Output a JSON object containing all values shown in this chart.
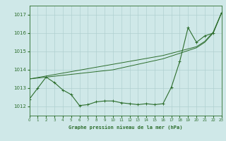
{
  "title": "Graphe pression niveau de la mer (hPa)",
  "bg_color": "#cfe8e8",
  "grid_color": "#b0d0d0",
  "line_color": "#2d6e2d",
  "xlim": [
    0,
    23
  ],
  "ylim": [
    1011.5,
    1017.5
  ],
  "yticks": [
    1012,
    1013,
    1014,
    1015,
    1016,
    1017
  ],
  "xticks": [
    0,
    1,
    2,
    3,
    4,
    5,
    6,
    7,
    8,
    9,
    10,
    11,
    12,
    13,
    14,
    15,
    16,
    17,
    18,
    19,
    20,
    21,
    22,
    23
  ],
  "series_bottom": [
    1012.4,
    1013.0,
    1013.6,
    1013.3,
    1012.9,
    1012.65,
    1012.05,
    1012.1,
    1012.25,
    1012.3,
    1012.3,
    1012.2,
    1012.15,
    1012.1,
    1012.15,
    1012.1,
    1012.15,
    1013.05,
    1014.45,
    1016.3,
    1015.5,
    1015.85,
    1016.0,
    1017.1
  ],
  "series_line1": [
    1013.5,
    1013.55,
    1013.6,
    1013.65,
    1013.7,
    1013.75,
    1013.8,
    1013.85,
    1013.9,
    1013.95,
    1014.0,
    1014.1,
    1014.2,
    1014.3,
    1014.4,
    1014.5,
    1014.6,
    1014.75,
    1014.9,
    1015.05,
    1015.2,
    1015.5,
    1016.0,
    1017.1
  ],
  "series_line2": [
    1013.5,
    1013.58,
    1013.66,
    1013.74,
    1013.82,
    1013.9,
    1013.98,
    1014.06,
    1014.14,
    1014.22,
    1014.3,
    1014.38,
    1014.46,
    1014.54,
    1014.62,
    1014.7,
    1014.78,
    1014.9,
    1015.02,
    1015.14,
    1015.26,
    1015.55,
    1016.05,
    1017.1
  ]
}
